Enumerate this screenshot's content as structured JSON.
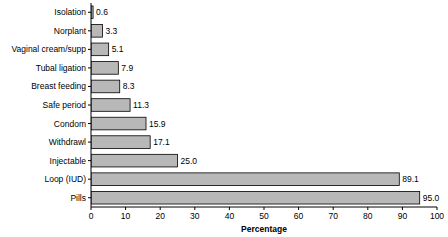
{
  "chart_data": {
    "type": "bar",
    "orientation": "horizontal",
    "x_label": "Percentage",
    "categories": [
      "Isolation",
      "Norplant",
      "Vaginal cream/supp",
      "Tubal ligation",
      "Breast feeding",
      "Safe period",
      "Condom",
      "Withdrawl",
      "Injectable",
      "Loop (IUD)",
      "Pills"
    ],
    "values": [
      0.6,
      3.3,
      5.1,
      7.9,
      8.3,
      11.3,
      15.9,
      17.1,
      25.0,
      89.1,
      95.0
    ],
    "value_labels": [
      "0.6",
      "3.3",
      "5.1",
      "7.9",
      "8.3",
      "11.3",
      "15.9",
      "17.1",
      "25.0",
      "89.1",
      "95.0"
    ],
    "data_labels": true,
    "color": "#b8b8b8",
    "grid": false,
    "xlim": [
      0,
      100
    ],
    "xticks": [
      0,
      10,
      20,
      30,
      40,
      50,
      60,
      70,
      80,
      90,
      100
    ]
  }
}
